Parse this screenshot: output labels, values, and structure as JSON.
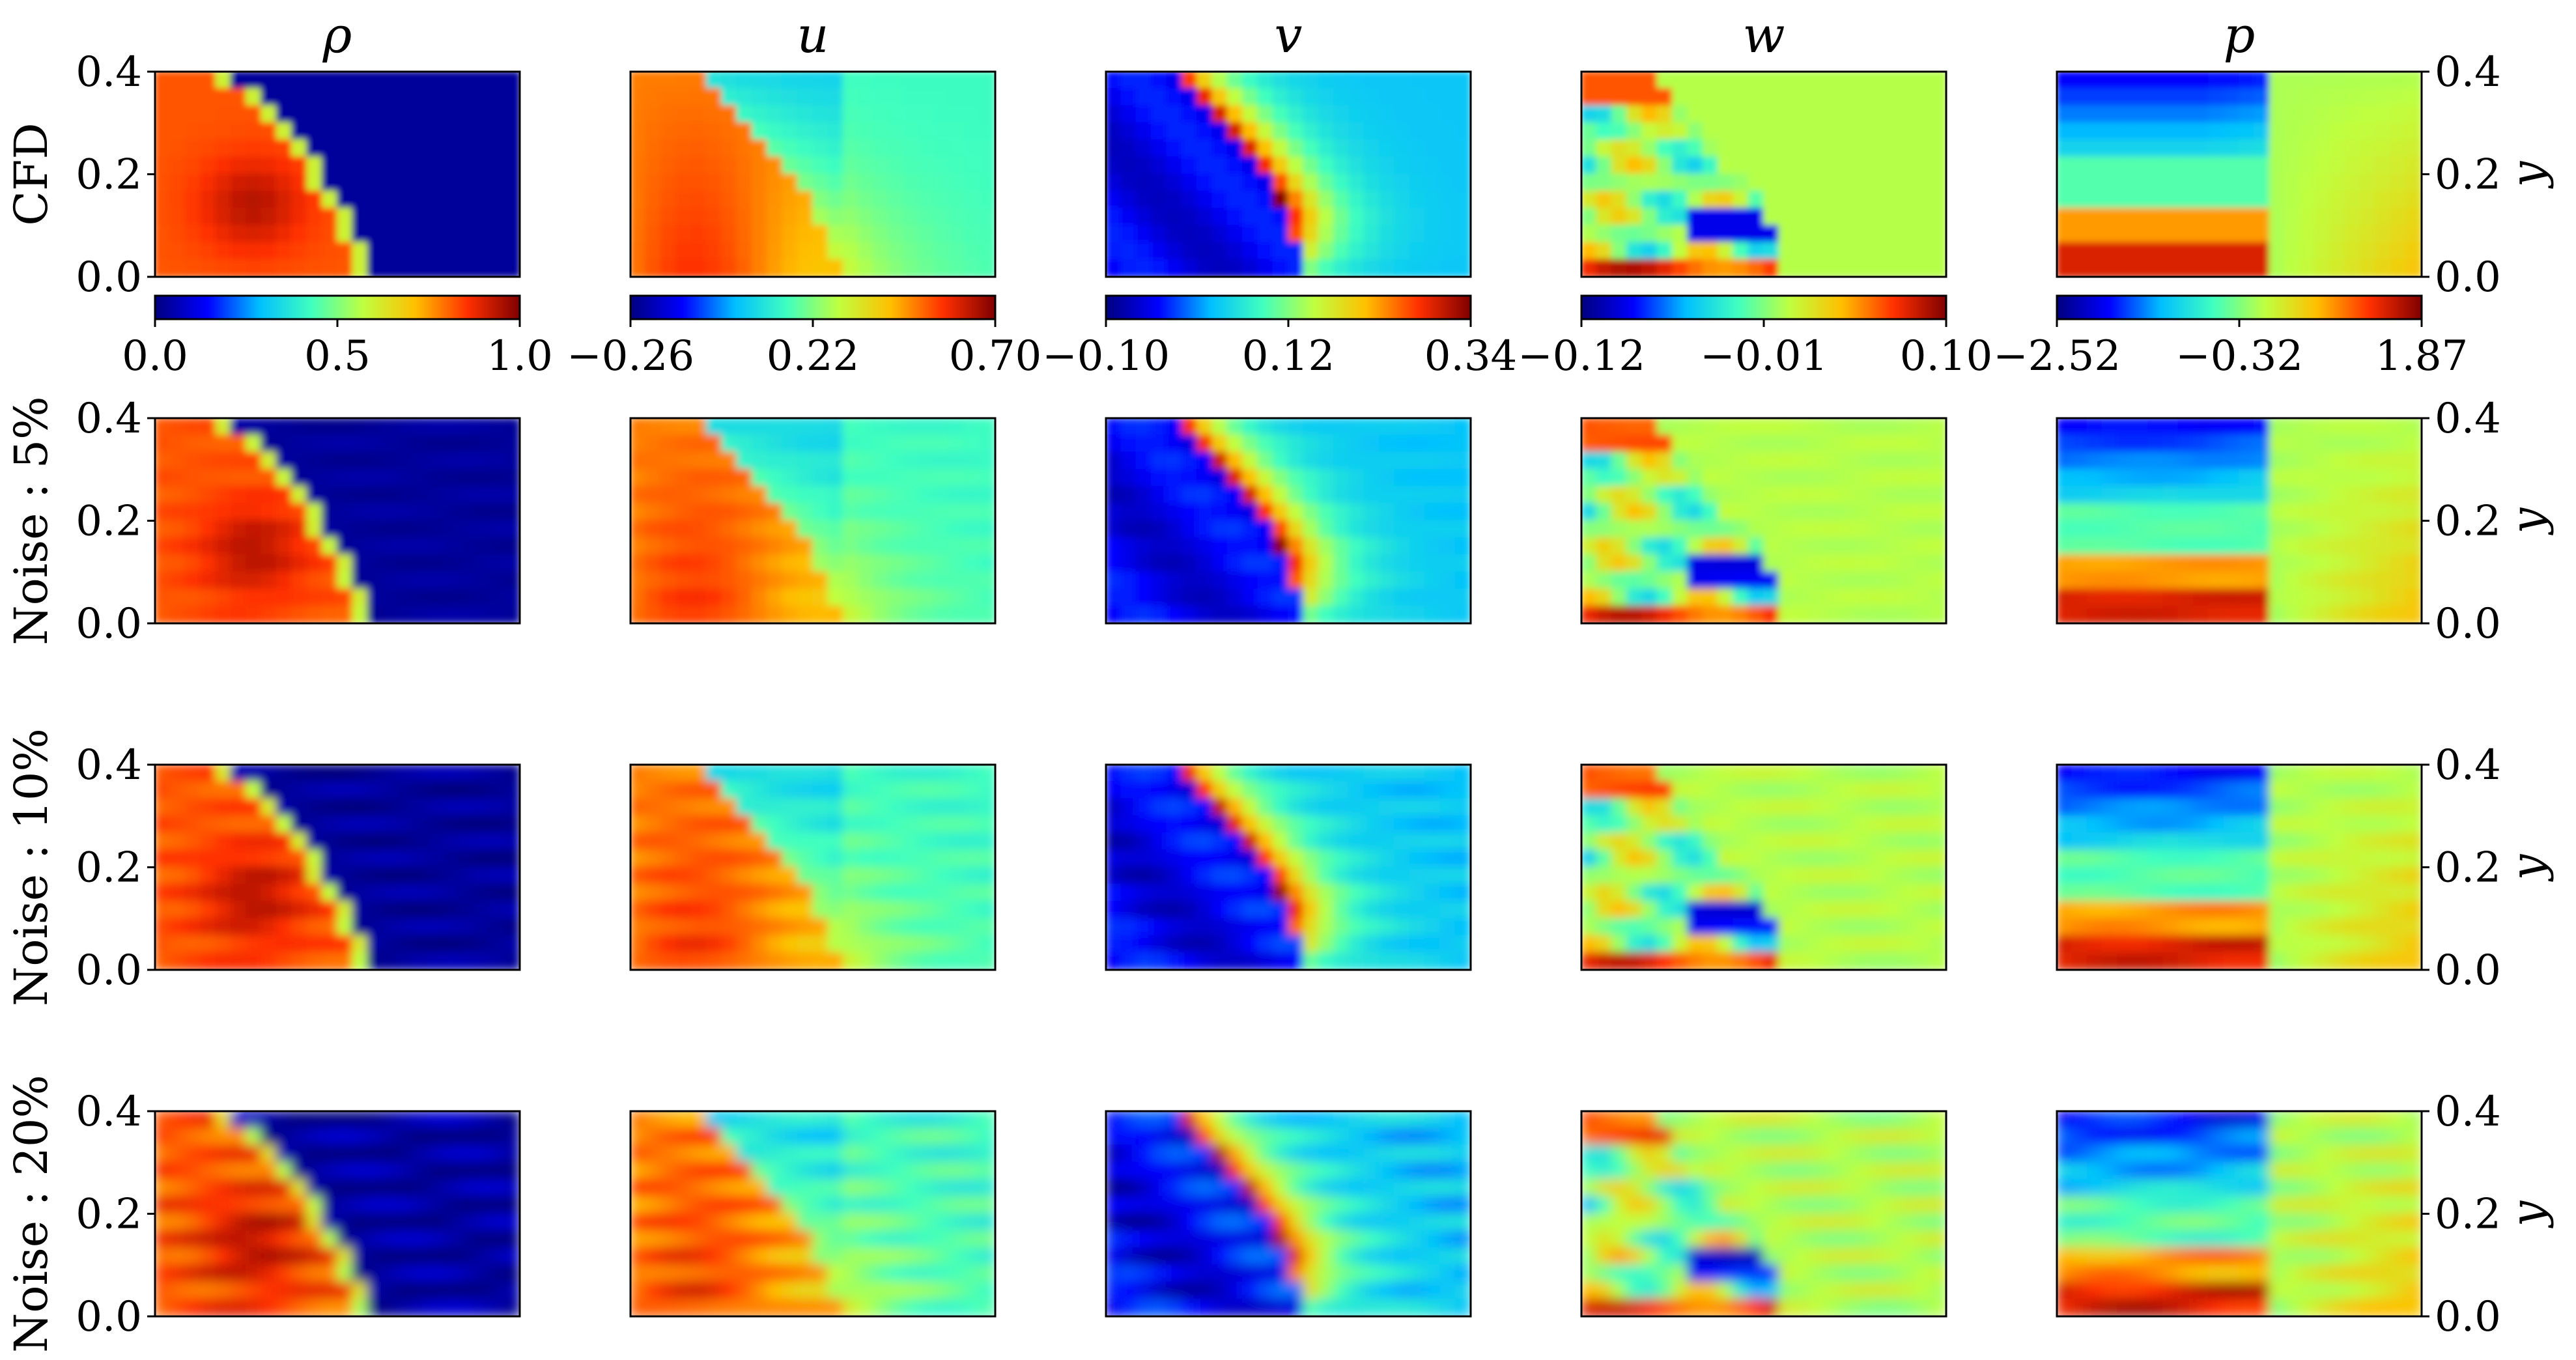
{
  "colormap": "jet",
  "colormap_stops": [
    "#00007f",
    "#0000ff",
    "#00bfff",
    "#40ffbf",
    "#bfff40",
    "#ffbf00",
    "#ff3000",
    "#7f0000"
  ],
  "chart_data": {
    "type": "heatmap",
    "columns": [
      {
        "key": "rho",
        "title": "ρ",
        "colorbar": {
          "min": 0.0,
          "max": 1.0,
          "ticks": [
            "0.0",
            "0.5",
            "1.0"
          ]
        }
      },
      {
        "key": "u",
        "title": "u",
        "colorbar": {
          "min": -0.26,
          "max": 0.7,
          "ticks": [
            "−0.26",
            "0.22",
            "0.70"
          ]
        }
      },
      {
        "key": "v",
        "title": "v",
        "colorbar": {
          "min": -0.1,
          "max": 0.34,
          "ticks": [
            "−0.10",
            "0.12",
            "0.34"
          ]
        }
      },
      {
        "key": "w",
        "title": "w",
        "colorbar": {
          "min": -0.12,
          "max": 0.1,
          "ticks": [
            "−0.12",
            "−0.01",
            "0.10"
          ]
        }
      },
      {
        "key": "p",
        "title": "p",
        "colorbar": {
          "min": -2.52,
          "max": 1.87,
          "ticks": [
            "−2.52",
            "−0.32",
            "1.87"
          ]
        }
      }
    ],
    "rows": [
      {
        "label": "CFD",
        "noise": 0
      },
      {
        "label": "Noise : 5%",
        "noise": 5
      },
      {
        "label": "Noise : 10%",
        "noise": 10
      },
      {
        "label": "Noise : 20%",
        "noise": 20
      }
    ],
    "y_axis": {
      "label": "y",
      "ylim": [
        0.0,
        0.4
      ],
      "ticks": [
        "0.0",
        "0.2",
        "0.4"
      ]
    }
  }
}
